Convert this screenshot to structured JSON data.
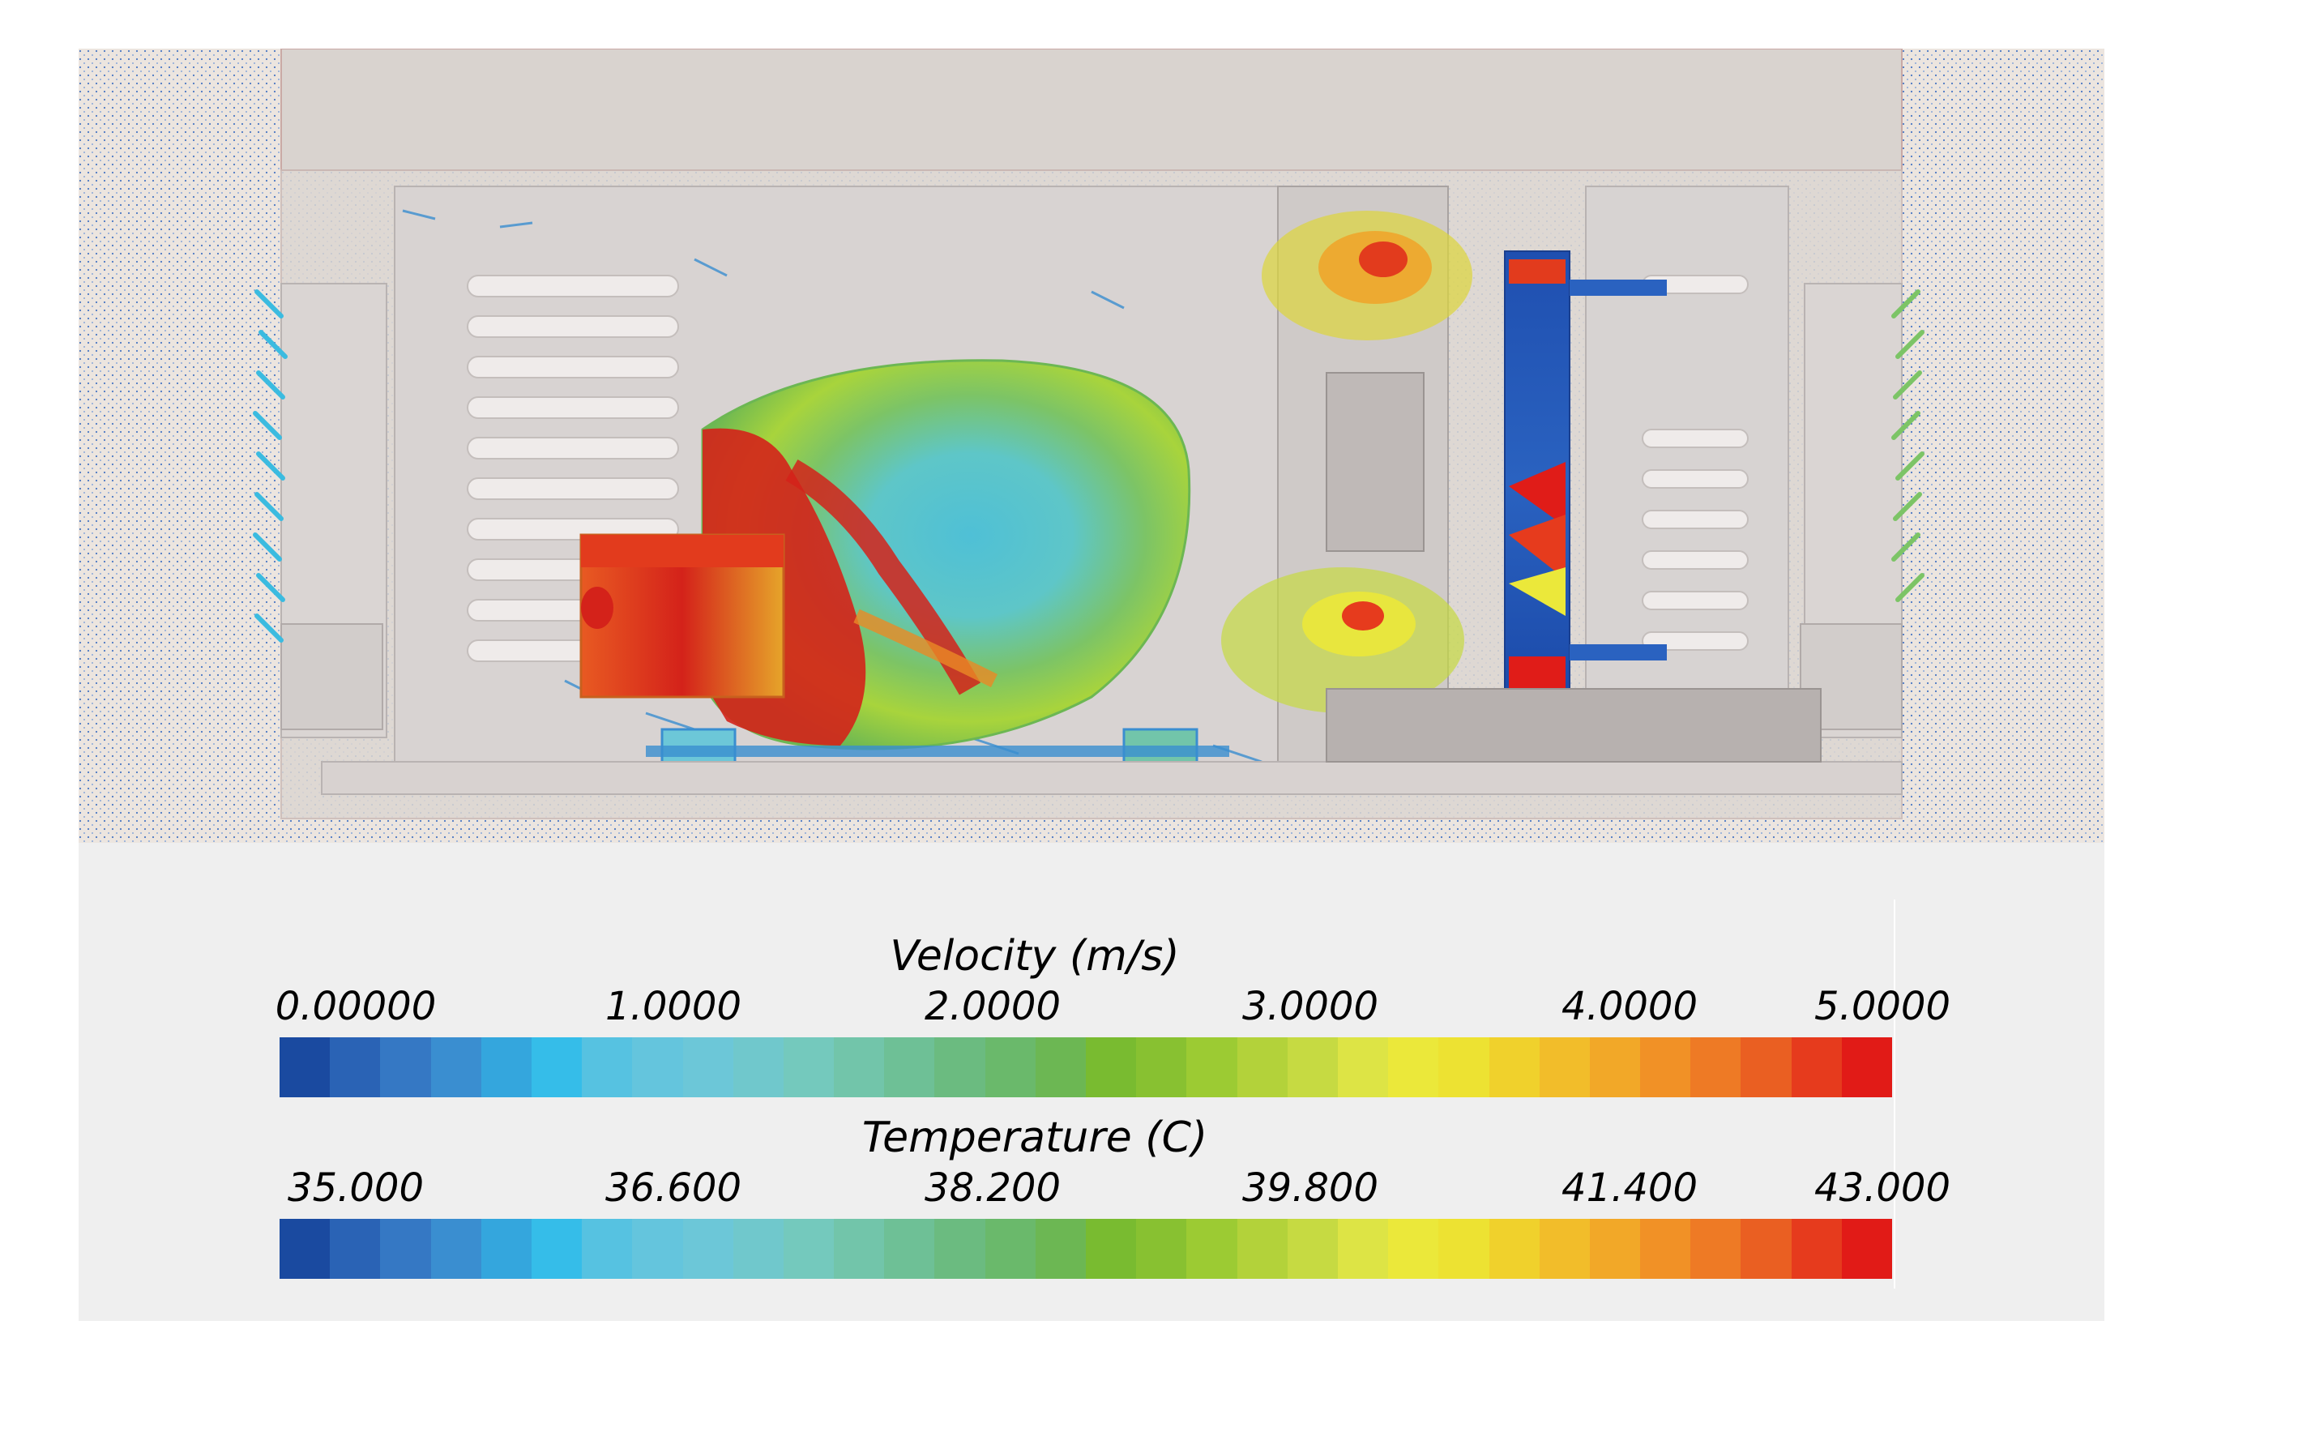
{
  "legends": [
    {
      "title": "Velocity (m/s)",
      "ticks": [
        "0.00000",
        "1.0000",
        "2.0000",
        "3.0000",
        "4.0000",
        "5.0000"
      ]
    },
    {
      "title": "Temperature (C)",
      "ticks": [
        "35.000",
        "36.600",
        "38.200",
        "39.800",
        "41.400",
        "43.000"
      ]
    }
  ],
  "colormap": [
    "#1a4aa0",
    "#2a63b5",
    "#3578c4",
    "#3a8ed0",
    "#34a6dd",
    "#35bde9",
    "#56c2e1",
    "#64c5dd",
    "#6cc7d8",
    "#70c8cc",
    "#74c9bd",
    "#72c5aa",
    "#6ec096",
    "#6bbb80",
    "#6ab96b",
    "#6cb753",
    "#79bb30",
    "#88c131",
    "#9ccb33",
    "#b3d23a",
    "#c6da42",
    "#dde445",
    "#ebe83a",
    "#ede232",
    "#f0d12c",
    "#f2bd2a",
    "#f2a828",
    "#f19126",
    "#ee7a25",
    "#ea5f22",
    "#e63b1d",
    "#e11b17"
  ],
  "colors": {
    "background": "#ece5df",
    "housing": "#d9d3cf",
    "flow_blue": "#2e6cc2",
    "flow_cyan": "#3bbbe0",
    "hot_red": "#e01c18"
  }
}
